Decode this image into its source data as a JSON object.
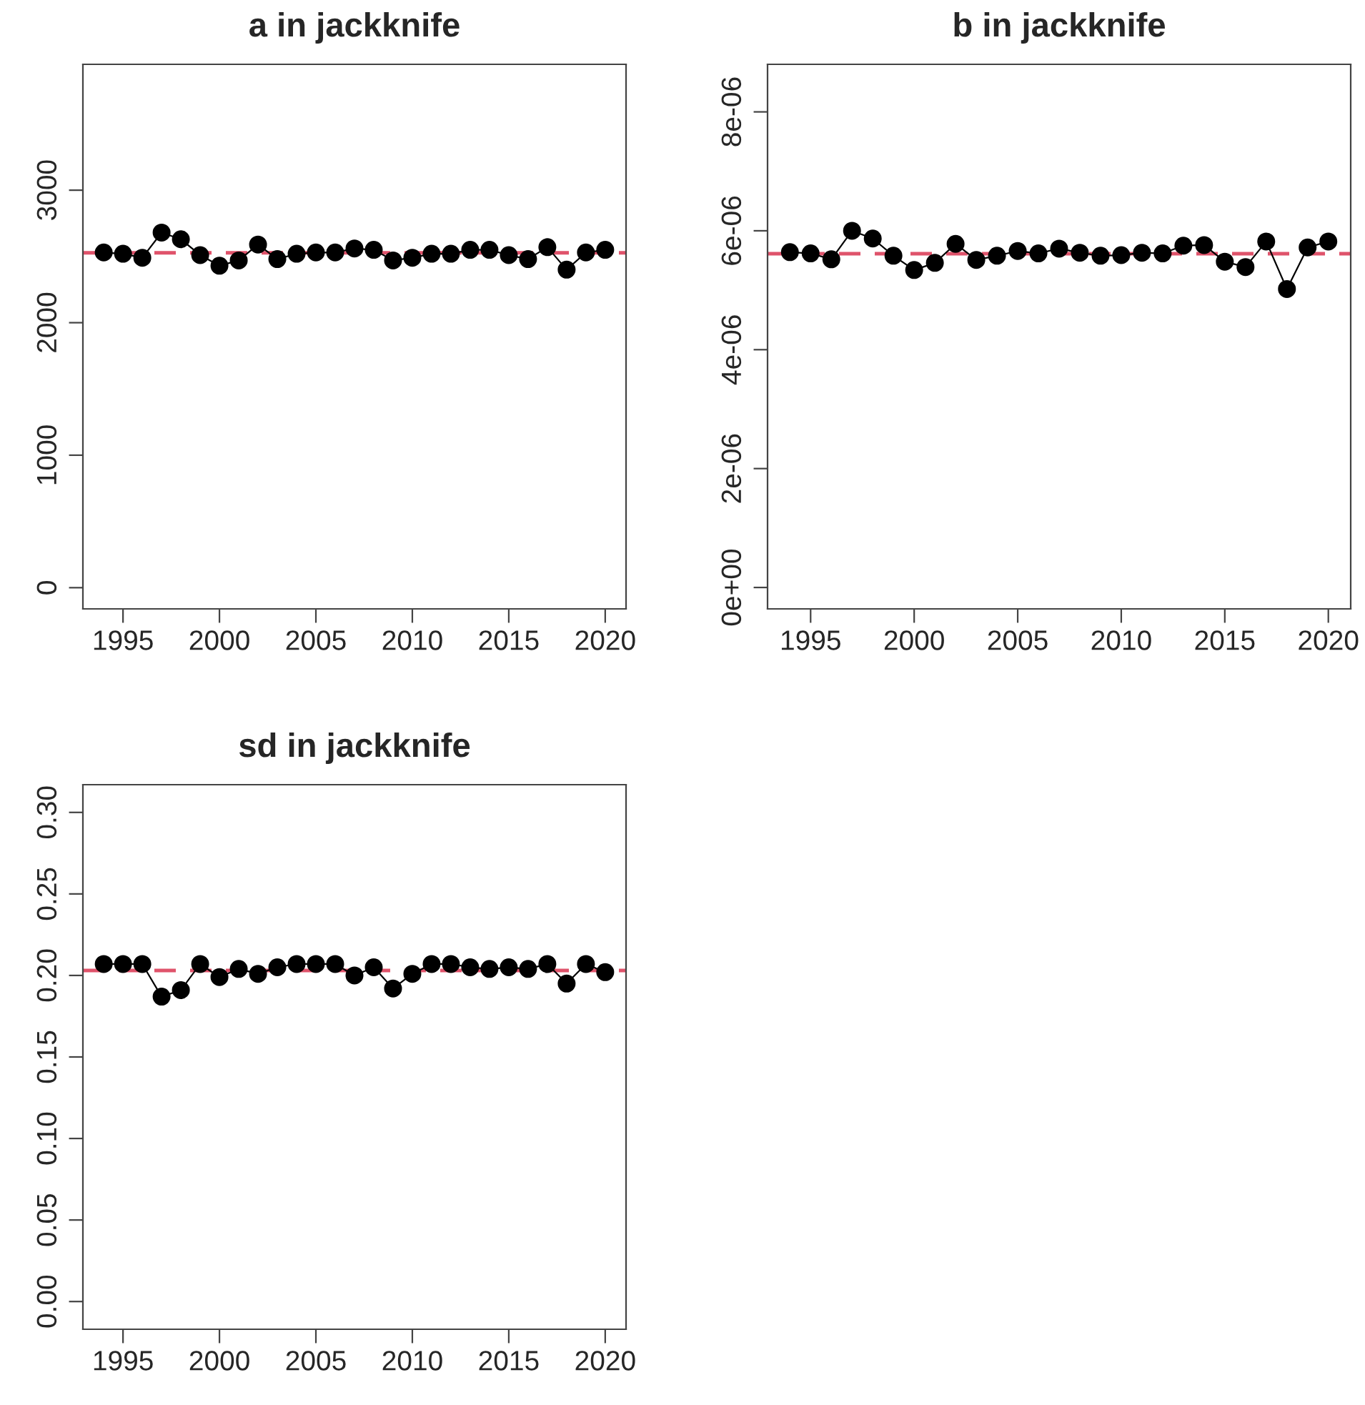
{
  "chart_data": [
    {
      "type": "line",
      "title": "a in jackknife",
      "x": [
        1994,
        1995,
        1996,
        1997,
        1998,
        1999,
        2000,
        2001,
        2002,
        2003,
        2004,
        2005,
        2006,
        2007,
        2008,
        2009,
        2010,
        2011,
        2012,
        2013,
        2014,
        2015,
        2016,
        2017,
        2018,
        2019,
        2020
      ],
      "series": [
        {
          "color": "#000000",
          "values": [
            2530,
            2520,
            2490,
            2680,
            2630,
            2510,
            2430,
            2470,
            2590,
            2480,
            2520,
            2530,
            2530,
            2560,
            2550,
            2470,
            2490,
            2520,
            2520,
            2550,
            2550,
            2510,
            2480,
            2570,
            2400,
            2530,
            2550
          ]
        }
      ],
      "marker": "circle",
      "xlim": [
        1992.92,
        2021.08
      ],
      "xticks": [
        1995,
        2000,
        2005,
        2010,
        2015,
        2020
      ],
      "ylim": [
        -160,
        3950
      ],
      "yticks": [
        0,
        1000,
        2000,
        3000
      ],
      "ref_lines": [
        {
          "axis": "y",
          "value": 2527,
          "color": "#df536b",
          "line_style": "dashed"
        }
      ],
      "grid": false
    },
    {
      "type": "line",
      "title": "b in jackknife",
      "x": [
        1994,
        1995,
        1996,
        1997,
        1998,
        1999,
        2000,
        2001,
        2002,
        2003,
        2004,
        2005,
        2006,
        2007,
        2008,
        2009,
        2010,
        2011,
        2012,
        2013,
        2014,
        2015,
        2016,
        2017,
        2018,
        2019,
        2020
      ],
      "series": [
        {
          "color": "#000000",
          "values": [
            5.64e-06,
            5.62e-06,
            5.52e-06,
            6e-06,
            5.87e-06,
            5.58e-06,
            5.34e-06,
            5.46e-06,
            5.78e-06,
            5.51e-06,
            5.58e-06,
            5.66e-06,
            5.62e-06,
            5.7e-06,
            5.63e-06,
            5.58e-06,
            5.59e-06,
            5.63e-06,
            5.62e-06,
            5.75e-06,
            5.76e-06,
            5.48e-06,
            5.39e-06,
            5.82e-06,
            5.02e-06,
            5.72e-06,
            5.82e-06
          ]
        }
      ],
      "marker": "circle",
      "xlim": [
        1992.92,
        2021.08
      ],
      "xticks": [
        1995,
        2000,
        2005,
        2010,
        2015,
        2020
      ],
      "ylim": [
        -3.6e-07,
        8.8e-06
      ],
      "yticks": [
        {
          "value": 0,
          "label": "0e+00"
        },
        {
          "value": 2e-06,
          "label": "2e-06"
        },
        {
          "value": 4e-06,
          "label": "4e-06"
        },
        {
          "value": 6e-06,
          "label": "6e-06"
        },
        {
          "value": 8e-06,
          "label": "8e-06"
        }
      ],
      "ref_lines": [
        {
          "axis": "y",
          "value": 5.615e-06,
          "color": "#df536b",
          "line_style": "dashed"
        }
      ],
      "grid": false
    },
    {
      "type": "line",
      "title": "sd in jackknife",
      "x": [
        1994,
        1995,
        1996,
        1997,
        1998,
        1999,
        2000,
        2001,
        2002,
        2003,
        2004,
        2005,
        2006,
        2007,
        2008,
        2009,
        2010,
        2011,
        2012,
        2013,
        2014,
        2015,
        2016,
        2017,
        2018,
        2019,
        2020
      ],
      "series": [
        {
          "color": "#000000",
          "values": [
            0.207,
            0.207,
            0.207,
            0.187,
            0.191,
            0.207,
            0.199,
            0.204,
            0.201,
            0.205,
            0.207,
            0.207,
            0.207,
            0.2,
            0.205,
            0.192,
            0.201,
            0.207,
            0.207,
            0.205,
            0.204,
            0.205,
            0.204,
            0.207,
            0.195,
            0.207,
            0.202
          ]
        }
      ],
      "marker": "circle",
      "xlim": [
        1992.92,
        2021.08
      ],
      "xticks": [
        1995,
        2000,
        2005,
        2010,
        2015,
        2020
      ],
      "ylim": [
        -0.017,
        0.317
      ],
      "yticks": [
        {
          "value": 0,
          "label": "0.00"
        },
        {
          "value": 0.05,
          "label": "0.05"
        },
        {
          "value": 0.1,
          "label": "0.10"
        },
        {
          "value": 0.15,
          "label": "0.15"
        },
        {
          "value": 0.2,
          "label": "0.20"
        },
        {
          "value": 0.25,
          "label": "0.25"
        },
        {
          "value": 0.3,
          "label": "0.30"
        }
      ],
      "ref_lines": [
        {
          "axis": "y",
          "value": 0.203,
          "color": "#df536b",
          "line_style": "dashed"
        }
      ],
      "grid": false
    }
  ]
}
